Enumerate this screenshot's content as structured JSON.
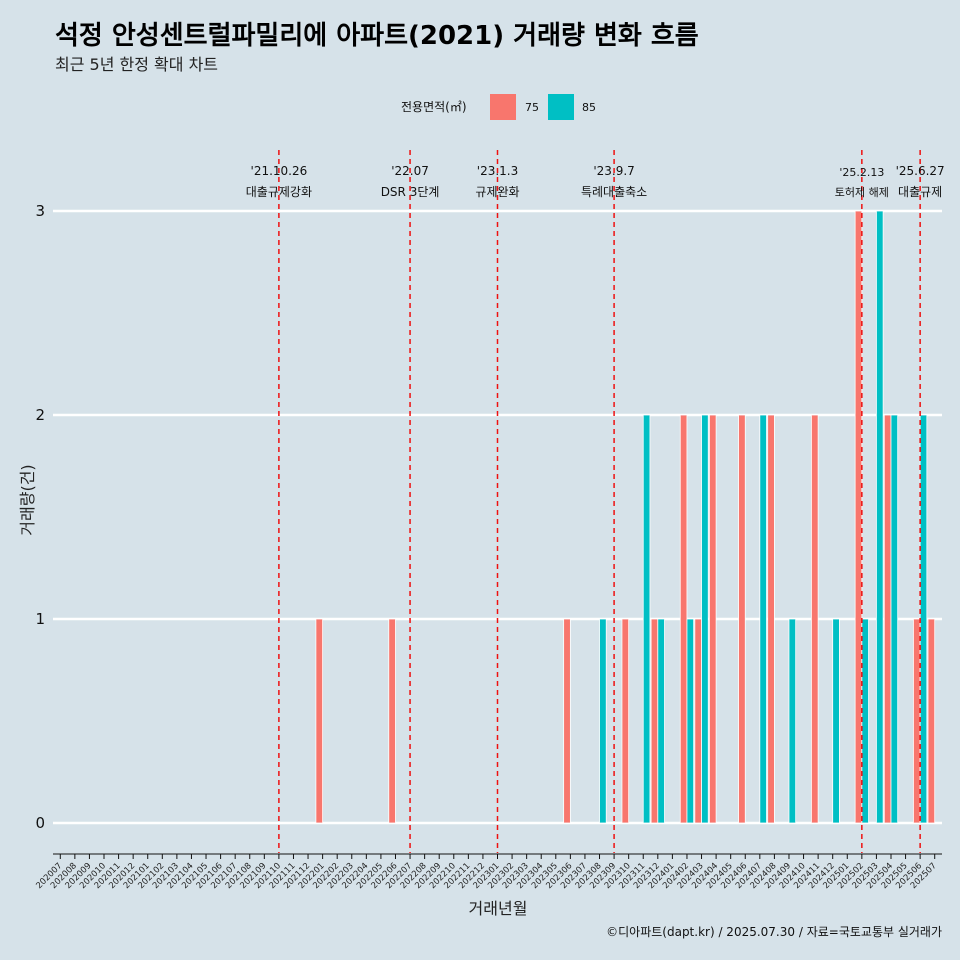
{
  "title": "석정 안성센트럴파밀리에 아파트(2021) 거래량 변화 흐름",
  "subtitle": "최근 5년 한정 확대 차트",
  "caption": "©디아파트(dapt.kr) / 2025.07.30 / 자료=국토교통부 실거래가",
  "legend": {
    "title": "전용면적(㎡)",
    "items": [
      {
        "label": "75",
        "color": "#f8766d"
      },
      {
        "label": "85",
        "color": "#00bfc4"
      }
    ]
  },
  "annotations": [
    {
      "month": "202110",
      "date": "'21.10.26",
      "label": "대출규제강화"
    },
    {
      "month": "202207",
      "date": "'22.07",
      "label": "DSR 3단계"
    },
    {
      "month": "202301",
      "date": "'23.1.3",
      "label": "규제완화"
    },
    {
      "month": "202309",
      "date": "'23.9.7",
      "label": "특례대출축소"
    },
    {
      "month": "202502",
      "date": "'25.2.13",
      "label": "토허제 해제"
    },
    {
      "month": "202506",
      "date": "'25.6.27",
      "label": "대출규제"
    }
  ],
  "chart_data": {
    "type": "bar",
    "xlabel": "거래년월",
    "ylabel": "거래량(건)",
    "ylim": [
      0,
      3
    ],
    "yticks": [
      0,
      1,
      2,
      3
    ],
    "categories": [
      "202007",
      "202008",
      "202009",
      "202010",
      "202011",
      "202012",
      "202101",
      "202102",
      "202103",
      "202104",
      "202105",
      "202106",
      "202107",
      "202108",
      "202109",
      "202110",
      "202111",
      "202112",
      "202201",
      "202202",
      "202203",
      "202204",
      "202205",
      "202206",
      "202207",
      "202208",
      "202209",
      "202210",
      "202211",
      "202212",
      "202301",
      "202302",
      "202303",
      "202304",
      "202305",
      "202306",
      "202307",
      "202308",
      "202309",
      "202310",
      "202311",
      "202312",
      "202401",
      "202402",
      "202403",
      "202404",
      "202405",
      "202406",
      "202407",
      "202408",
      "202409",
      "202410",
      "202411",
      "202412",
      "202501",
      "202502",
      "202503",
      "202504",
      "202505",
      "202506",
      "202507"
    ],
    "series": [
      {
        "name": "75",
        "color": "#f8766d",
        "values": [
          0,
          0,
          0,
          0,
          0,
          0,
          0,
          0,
          0,
          0,
          0,
          0,
          0,
          0,
          0,
          0,
          0,
          0,
          1,
          0,
          0,
          0,
          0,
          1,
          0,
          0,
          0,
          0,
          0,
          0,
          0,
          0,
          0,
          0,
          0,
          1,
          0,
          0,
          0,
          1,
          0,
          1,
          0,
          2,
          1,
          2,
          0,
          2,
          0,
          2,
          0,
          0,
          2,
          0,
          0,
          3,
          0,
          2,
          0,
          1,
          1
        ]
      },
      {
        "name": "85",
        "color": "#00bfc4",
        "values": [
          0,
          0,
          0,
          0,
          0,
          0,
          0,
          0,
          0,
          0,
          0,
          0,
          0,
          0,
          0,
          0,
          0,
          0,
          0,
          0,
          0,
          0,
          0,
          0,
          0,
          0,
          0,
          0,
          0,
          0,
          0,
          0,
          0,
          0,
          0,
          0,
          0,
          1,
          0,
          0,
          2,
          1,
          0,
          1,
          2,
          0,
          0,
          0,
          2,
          0,
          1,
          0,
          0,
          1,
          0,
          1,
          3,
          2,
          0,
          2,
          0
        ]
      }
    ],
    "grid": true,
    "legend_position": "top"
  }
}
